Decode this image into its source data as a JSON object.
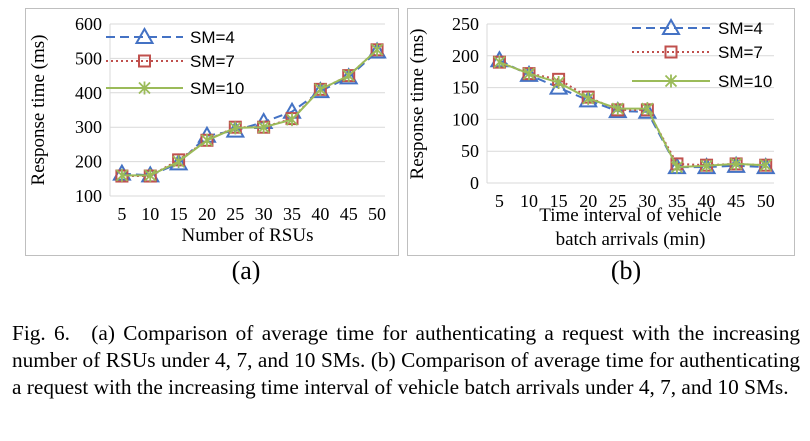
{
  "chart_data": [
    {
      "type": "line",
      "panel_label": "(a)",
      "xlabel": "Number of RSUs",
      "ylabel": "Response time (ms)",
      "categories": [
        "5",
        "10",
        "15",
        "20",
        "25",
        "30",
        "35",
        "40",
        "45",
        "50"
      ],
      "ylim": [
        100,
        600
      ],
      "yticks": [
        100,
        200,
        300,
        400,
        500,
        600
      ],
      "grid": true,
      "legend_position": "top-left",
      "series": [
        {
          "name": "SM=4",
          "values": [
            165,
            160,
            195,
            275,
            290,
            315,
            345,
            405,
            445,
            520
          ],
          "color": "#4472c4",
          "marker": "triangle",
          "dash": "dashed"
        },
        {
          "name": "SM=7",
          "values": [
            158,
            158,
            205,
            262,
            300,
            300,
            325,
            410,
            450,
            525
          ],
          "color": "#c0504d",
          "marker": "square",
          "dash": "dotted"
        },
        {
          "name": "SM=10",
          "values": [
            160,
            160,
            200,
            262,
            298,
            300,
            322,
            410,
            450,
            525
          ],
          "color": "#9bbb59",
          "marker": "asterisk",
          "dash": "solid"
        }
      ]
    },
    {
      "type": "line",
      "panel_label": "(b)",
      "xlabel": "Time interval of vehicle\nbatch arrivals (min)",
      "ylabel": "Response time (ms)",
      "categories": [
        "5",
        "10",
        "15",
        "20",
        "25",
        "30",
        "35",
        "40",
        "45",
        "50"
      ],
      "ylim": [
        0,
        250
      ],
      "yticks": [
        0,
        50,
        100,
        150,
        200,
        250
      ],
      "grid": true,
      "legend_position": "top-right",
      "series": [
        {
          "name": "SM=4",
          "values": [
            193,
            170,
            150,
            130,
            113,
            112,
            25,
            25,
            27,
            25
          ],
          "color": "#4472c4",
          "marker": "triangle",
          "dash": "dashed"
        },
        {
          "name": "SM=7",
          "values": [
            190,
            172,
            163,
            135,
            115,
            115,
            30,
            28,
            30,
            28
          ],
          "color": "#c0504d",
          "marker": "square",
          "dash": "dotted"
        },
        {
          "name": "SM=10",
          "values": [
            190,
            172,
            158,
            133,
            117,
            117,
            25,
            27,
            30,
            28
          ],
          "color": "#9bbb59",
          "marker": "asterisk",
          "dash": "solid"
        }
      ]
    }
  ],
  "caption": "Fig. 6. (a) Comparison of average time for authenticating a request with the increasing number of RSUs under 4, 7, and 10 SMs. (b) Comparison of average time for authenticating a request with the increasing time interval of vehicle batch arrivals under 4, 7, and 10 SMs."
}
